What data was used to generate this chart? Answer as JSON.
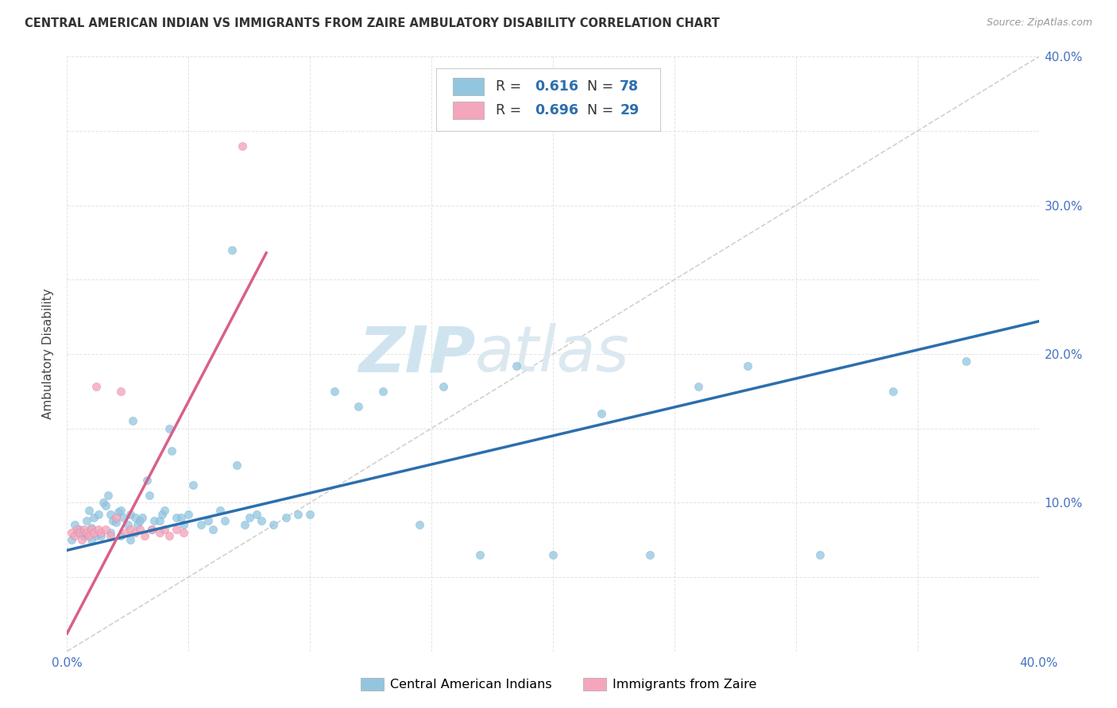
{
  "title": "CENTRAL AMERICAN INDIAN VS IMMIGRANTS FROM ZAIRE AMBULATORY DISABILITY CORRELATION CHART",
  "source": "Source: ZipAtlas.com",
  "ylabel": "Ambulatory Disability",
  "xlim": [
    0.0,
    0.4
  ],
  "ylim": [
    0.0,
    0.4
  ],
  "xticks": [
    0.0,
    0.05,
    0.1,
    0.15,
    0.2,
    0.25,
    0.3,
    0.35,
    0.4
  ],
  "yticks": [
    0.0,
    0.05,
    0.1,
    0.15,
    0.2,
    0.25,
    0.3,
    0.35,
    0.4
  ],
  "r1": "0.616",
  "n1": "78",
  "r2": "0.696",
  "n2": "29",
  "blue_color": "#92c5de",
  "blue_edge": "#6baed6",
  "pink_color": "#f4a6bc",
  "pink_edge": "#e07898",
  "blue_line_color": "#2c6fad",
  "pink_line_color": "#d95f8a",
  "diagonal_color": "#cccccc",
  "watermark_color": "#d0e4f0",
  "blue_fit_x0": 0.0,
  "blue_fit_y0": 0.068,
  "blue_fit_x1": 0.4,
  "blue_fit_y1": 0.222,
  "pink_fit_x0": 0.0,
  "pink_fit_y0": 0.012,
  "pink_fit_x1": 0.082,
  "pink_fit_y1": 0.268,
  "blue_x": [
    0.003,
    0.005,
    0.006,
    0.007,
    0.008,
    0.009,
    0.01,
    0.011,
    0.012,
    0.013,
    0.015,
    0.016,
    0.017,
    0.018,
    0.019,
    0.02,
    0.021,
    0.022,
    0.023,
    0.025,
    0.026,
    0.027,
    0.028,
    0.029,
    0.03,
    0.031,
    0.033,
    0.034,
    0.035,
    0.036,
    0.038,
    0.039,
    0.04,
    0.042,
    0.043,
    0.045,
    0.047,
    0.048,
    0.05,
    0.052,
    0.055,
    0.058,
    0.06,
    0.063,
    0.065,
    0.068,
    0.07,
    0.073,
    0.075,
    0.078,
    0.08,
    0.085,
    0.09,
    0.095,
    0.1,
    0.11,
    0.12,
    0.13,
    0.145,
    0.155,
    0.17,
    0.185,
    0.2,
    0.22,
    0.24,
    0.26,
    0.28,
    0.31,
    0.34,
    0.37,
    0.002,
    0.004,
    0.007,
    0.01,
    0.014,
    0.018,
    0.022,
    0.026
  ],
  "blue_y": [
    0.085,
    0.082,
    0.08,
    0.078,
    0.088,
    0.095,
    0.083,
    0.09,
    0.078,
    0.092,
    0.1,
    0.098,
    0.105,
    0.092,
    0.088,
    0.087,
    0.094,
    0.095,
    0.09,
    0.085,
    0.092,
    0.155,
    0.09,
    0.085,
    0.088,
    0.09,
    0.115,
    0.105,
    0.082,
    0.088,
    0.088,
    0.092,
    0.095,
    0.15,
    0.135,
    0.09,
    0.09,
    0.085,
    0.092,
    0.112,
    0.085,
    0.088,
    0.082,
    0.095,
    0.088,
    0.27,
    0.125,
    0.085,
    0.09,
    0.092,
    0.088,
    0.085,
    0.09,
    0.092,
    0.092,
    0.175,
    0.165,
    0.175,
    0.085,
    0.178,
    0.065,
    0.192,
    0.065,
    0.16,
    0.065,
    0.178,
    0.192,
    0.065,
    0.175,
    0.195,
    0.075,
    0.08,
    0.078,
    0.075,
    0.078,
    0.08,
    0.078,
    0.075
  ],
  "pink_x": [
    0.002,
    0.003,
    0.004,
    0.005,
    0.006,
    0.007,
    0.008,
    0.009,
    0.01,
    0.011,
    0.012,
    0.013,
    0.014,
    0.016,
    0.018,
    0.02,
    0.022,
    0.024,
    0.026,
    0.028,
    0.03,
    0.032,
    0.035,
    0.038,
    0.04,
    0.042,
    0.045,
    0.048,
    0.072
  ],
  "pink_y": [
    0.08,
    0.078,
    0.082,
    0.08,
    0.075,
    0.082,
    0.08,
    0.078,
    0.082,
    0.08,
    0.178,
    0.082,
    0.08,
    0.082,
    0.078,
    0.09,
    0.175,
    0.08,
    0.082,
    0.08,
    0.082,
    0.078,
    0.082,
    0.08,
    0.082,
    0.078,
    0.082,
    0.08,
    0.34
  ]
}
